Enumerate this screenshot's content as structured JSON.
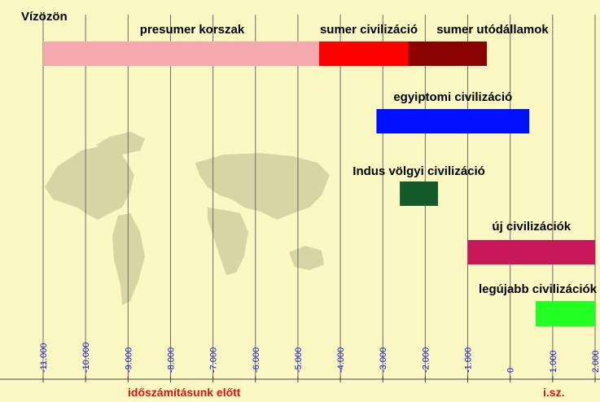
{
  "chart_data": {
    "type": "bar",
    "title": "Vízözön",
    "x_ticks": [
      -11000,
      -10000,
      -9000,
      -8000,
      -7000,
      -6000,
      -5000,
      -4000,
      -3000,
      -2000,
      -1000,
      0,
      1000,
      2000
    ],
    "x_tick_labels": [
      "-11.000",
      "-10.000",
      "-9.000",
      "-8.000",
      "-7.000",
      "-6.000",
      "-5.000",
      "-4.000",
      "-3.000",
      "-2.000",
      "-1.000",
      "0",
      "1.000",
      "2.000"
    ],
    "xlim": [
      -11000,
      2000
    ],
    "grid": true,
    "era_labels": {
      "bc": "időszámításunk előtt",
      "ad": "i.sz."
    },
    "bars": [
      {
        "label": "presumer korszak",
        "start": -11000,
        "end": -4500,
        "color": "#f4a9ad",
        "row": 1
      },
      {
        "label": "sumer civilizáció",
        "start": -4500,
        "end": -2400,
        "color": "#ff0000",
        "row": 1
      },
      {
        "label": "sumer utódállamok",
        "start": -2400,
        "end": -550,
        "color": "#8b0000",
        "row": 1
      },
      {
        "label": "egyiptomi civilizáció",
        "start": -3150,
        "end": 450,
        "color": "#0010ff",
        "row": 2
      },
      {
        "label": "Indus völgyi civilizáció",
        "start": -2600,
        "end": -1700,
        "color": "#145a2a",
        "row": 3
      },
      {
        "label": "új civilizációk",
        "start": -1000,
        "end": 2000,
        "color": "#c8185a",
        "row": 4
      },
      {
        "label": "legújabb civilizációk",
        "start": 600,
        "end": 2000,
        "color": "#22ff22",
        "row": 5
      }
    ]
  }
}
